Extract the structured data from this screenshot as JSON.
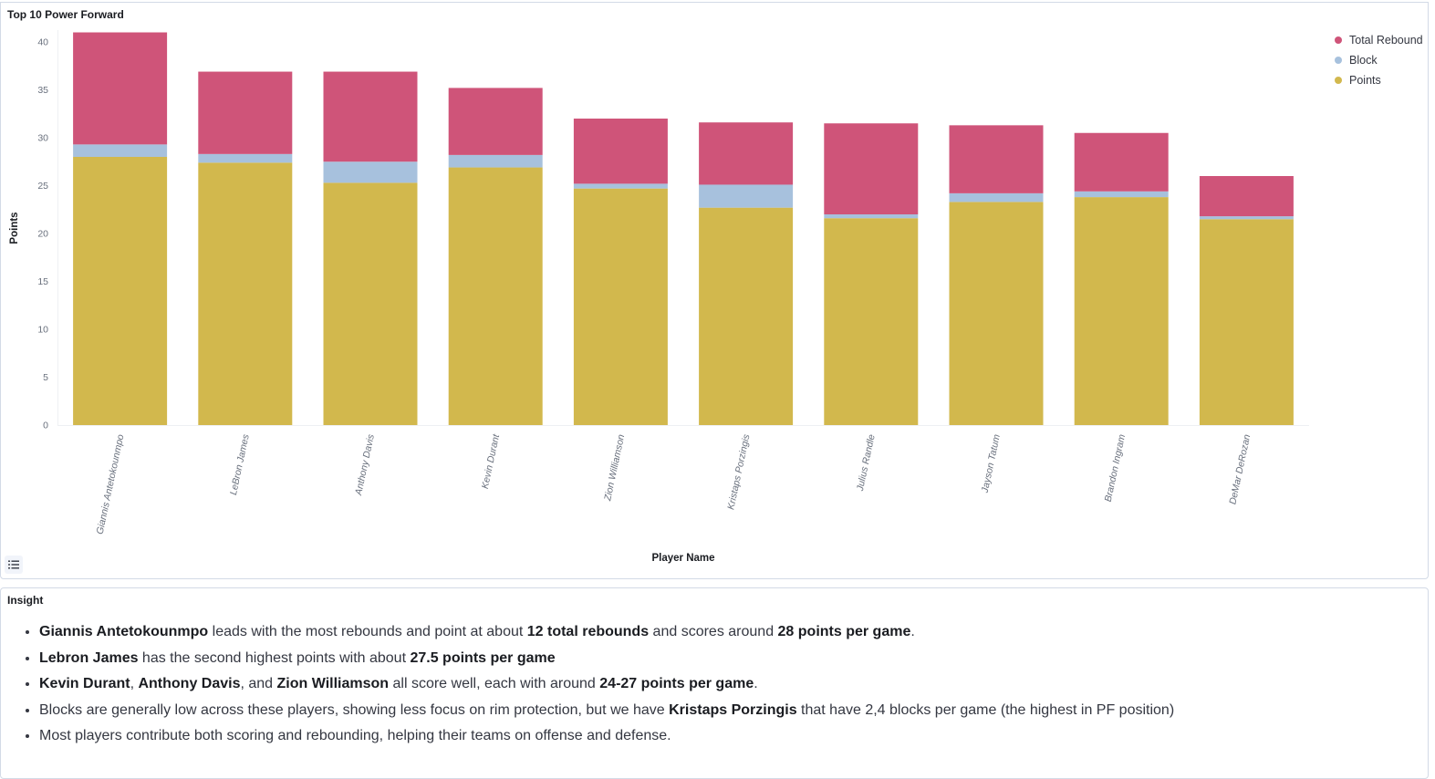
{
  "chart_panel": {
    "title": "Top 10 Power Forward"
  },
  "colors": {
    "rebound": "#cf5479",
    "block": "#a7c1dd",
    "points": "#d2b84d"
  },
  "legend": [
    {
      "label": "Total Rebound",
      "color": "#cf5479"
    },
    {
      "label": "Block",
      "color": "#a7c1dd"
    },
    {
      "label": "Points",
      "color": "#d2b84d"
    }
  ],
  "legend_toggle_icon": "list-icon",
  "chart_data": {
    "type": "bar",
    "stacked": true,
    "title": "Top 10 Power Forward",
    "xlabel": "Player Name",
    "ylabel": "Points",
    "ylim": [
      0,
      41
    ],
    "yticks": [
      0,
      5,
      10,
      15,
      20,
      25,
      30,
      35,
      40
    ],
    "grid": false,
    "legend_position": "top-right",
    "categories": [
      "Giannis Antetokounmpo",
      "LeBron James",
      "Anthony Davis",
      "Kevin Durant",
      "Zion Williamson",
      "Kristaps Porzingis",
      "Julius Randle",
      "Jayson Tatum",
      "Brandon Ingram",
      "DeMar DeRozan"
    ],
    "series": [
      {
        "name": "Points",
        "values": [
          28,
          27.4,
          25.3,
          26.9,
          24.7,
          22.7,
          21.6,
          23.3,
          23.8,
          21.5
        ]
      },
      {
        "name": "Block",
        "values": [
          1.3,
          0.9,
          2.2,
          1.3,
          0.5,
          2.4,
          0.4,
          0.9,
          0.6,
          0.3
        ]
      },
      {
        "name": "Total Rebound",
        "values": [
          11.7,
          8.6,
          9.4,
          7.0,
          6.8,
          6.5,
          9.5,
          7.1,
          6.1,
          4.2
        ]
      }
    ]
  },
  "insight_panel": {
    "title": "Insight",
    "items": [
      [
        {
          "b": true,
          "t": "Giannis Antetokounmpo"
        },
        {
          "t": " leads with the most rebounds and point at about "
        },
        {
          "b": true,
          "t": "12 total rebounds"
        },
        {
          "t": " and scores around "
        },
        {
          "b": true,
          "t": "28 points per game"
        },
        {
          "t": "."
        }
      ],
      [
        {
          "b": true,
          "t": "Lebron James"
        },
        {
          "t": " has the second highest points with about "
        },
        {
          "b": true,
          "t": "27.5 points per game"
        }
      ],
      [
        {
          "b": true,
          "t": "Kevin Durant"
        },
        {
          "t": ", "
        },
        {
          "b": true,
          "t": "Anthony Davis"
        },
        {
          "t": ", and "
        },
        {
          "b": true,
          "t": "Zion Williamson"
        },
        {
          "t": " all score well, each with around "
        },
        {
          "b": true,
          "t": "24-27 points per game"
        },
        {
          "t": "."
        }
      ],
      [
        {
          "t": "Blocks are generally low across these players, showing less focus on rim protection, but we have "
        },
        {
          "b": true,
          "t": "Kristaps Porzingis"
        },
        {
          "t": " that have 2,4 blocks per game (the highest in PF position)"
        }
      ],
      [
        {
          "t": "Most players contribute both scoring and rebounding, helping their teams on offense and defense."
        }
      ]
    ]
  }
}
